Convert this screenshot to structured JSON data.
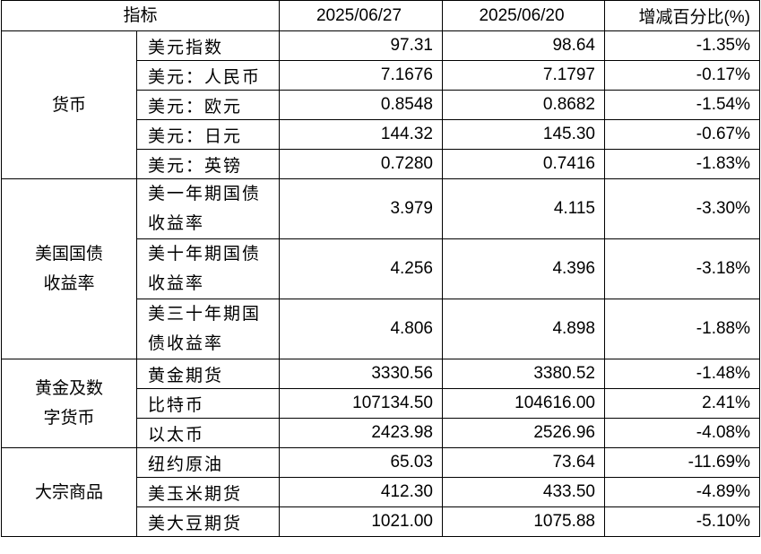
{
  "header": {
    "indicator": "指标",
    "date1": "2025/06/27",
    "date2": "2025/06/20",
    "change": "增减百分比(%)"
  },
  "groups": [
    {
      "category": "货币",
      "rows": [
        {
          "name": "美元指数",
          "v1": "97.31",
          "v2": "98.64",
          "chg": "-1.35%"
        },
        {
          "name": "美元：人民币",
          "v1": "7.1676",
          "v2": "7.1797",
          "chg": "-0.17%"
        },
        {
          "name": "美元：欧元",
          "v1": "0.8548",
          "v2": "0.8682",
          "chg": "-1.54%"
        },
        {
          "name": "美元：日元",
          "v1": "144.32",
          "v2": "145.30",
          "chg": "-0.67%"
        },
        {
          "name": "美元：英镑",
          "v1": "0.7280",
          "v2": "0.7416",
          "chg": "-1.83%"
        }
      ]
    },
    {
      "category": "美国国债收益率",
      "rows": [
        {
          "name": "美一年期国债收益率",
          "v1": "3.979",
          "v2": "4.115",
          "chg": "-3.30%",
          "two": true
        },
        {
          "name": "美十年期国债收益率",
          "v1": "4.256",
          "v2": "4.396",
          "chg": "-3.18%",
          "two": true
        },
        {
          "name": "美三十年期国债收益率",
          "v1": "4.806",
          "v2": "4.898",
          "chg": "-1.88%",
          "two": true
        }
      ]
    },
    {
      "category": "黄金及数字货币",
      "rows": [
        {
          "name": "黄金期货",
          "v1": "3330.56",
          "v2": "3380.52",
          "chg": "-1.48%"
        },
        {
          "name": "比特币",
          "v1": "107134.50",
          "v2": "104616.00",
          "chg": "2.41%"
        },
        {
          "name": "以太币",
          "v1": "2423.98",
          "v2": "2526.96",
          "chg": "-4.08%"
        }
      ]
    },
    {
      "category": "大宗商品",
      "rows": [
        {
          "name": "纽约原油",
          "v1": "65.03",
          "v2": "73.64",
          "chg": "-11.69%"
        },
        {
          "name": "美玉米期货",
          "v1": "412.30",
          "v2": "433.50",
          "chg": "-4.89%"
        },
        {
          "name": "美大豆期货",
          "v1": "1021.00",
          "v2": "1075.88",
          "chg": "-5.10%"
        }
      ]
    }
  ]
}
